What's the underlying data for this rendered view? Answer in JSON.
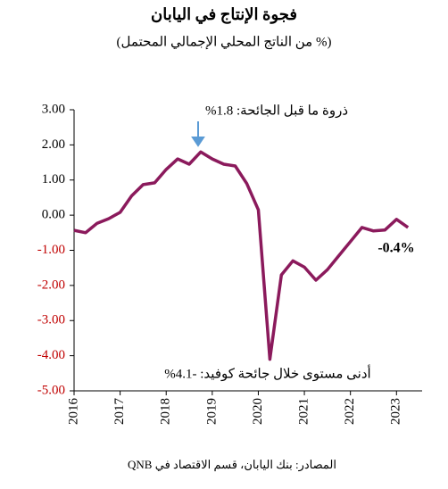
{
  "chart_data": {
    "type": "line",
    "title": "فجوة الإنتاج في اليابان",
    "subtitle": "(% من الناتج المحلي الإجمالي المحتمل)",
    "source": "المصادر: بنك اليابان، قسم الاقتصاد في QNB",
    "annotations": [
      "ذروة ما قبل الجائحة: 1.8%",
      "أدنى مستوى خلال جائحة كوفيد: -4.1%",
      "-0.4%"
    ],
    "x": [
      2016,
      2016.25,
      2016.5,
      2016.75,
      2017,
      2017.25,
      2017.5,
      2017.75,
      2018,
      2018.25,
      2018.5,
      2018.75,
      2019,
      2019.25,
      2019.5,
      2019.75,
      2020,
      2020.25,
      2020.5,
      2020.75,
      2021,
      2021.25,
      2021.5,
      2021.75,
      2022,
      2022.25,
      2022.5,
      2022.75,
      2023,
      2023.25
    ],
    "series": [
      {
        "color": "#8b1a5c",
        "values": [
          -0.43,
          -0.5,
          -0.23,
          -0.1,
          0.08,
          0.55,
          0.87,
          0.92,
          1.3,
          1.6,
          1.45,
          1.8,
          1.6,
          1.45,
          1.4,
          0.9,
          0.15,
          -4.1,
          -1.7,
          -1.3,
          -1.48,
          -1.85,
          -1.55,
          -1.15,
          -0.75,
          -0.35,
          -0.45,
          -0.42,
          -0.12,
          -0.35
        ]
      }
    ],
    "xlim": [
      2016,
      2023.75
    ],
    "xticks": [
      2016,
      2017,
      2018,
      2019,
      2020,
      2021,
      2022,
      2023
    ],
    "ylim": [
      -5,
      3
    ],
    "yticks": [
      {
        "value": 3,
        "label": "3.00"
      },
      {
        "value": 2,
        "label": "2.00"
      },
      {
        "value": 1,
        "label": "1.00"
      },
      {
        "value": 0,
        "label": "0.00"
      },
      {
        "value": -1,
        "label": "-1.00"
      },
      {
        "value": -2,
        "label": "-2.00"
      },
      {
        "value": -3,
        "label": "-3.00"
      },
      {
        "value": -4,
        "label": "-4.00"
      },
      {
        "value": -5,
        "label": "-5.00"
      }
    ],
    "negative_tick_color": "#c00000",
    "arrow_color": "#5b9bd5"
  }
}
